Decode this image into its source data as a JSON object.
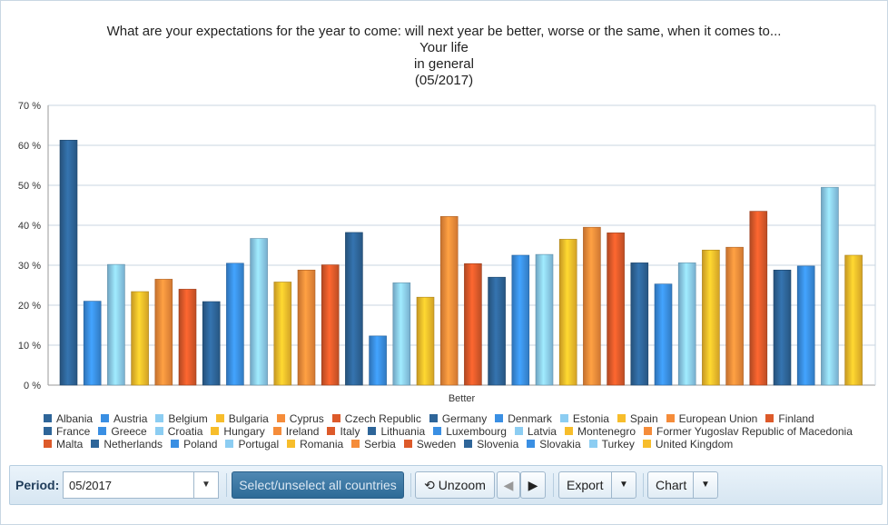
{
  "chart_data": {
    "type": "bar",
    "title": "What are your expectations for the year to come: will next year be better, worse or the same, when it comes to...",
    "subtitle": "Your life",
    "subtitle2": "in general",
    "period_label": "(05/2017)",
    "categories": [
      "Better"
    ],
    "ylim": [
      0,
      70
    ],
    "yticks": [
      "0 %",
      "10 %",
      "20 %",
      "30 %",
      "40 %",
      "50 %",
      "60 %",
      "70 %"
    ],
    "grid": true,
    "legend_position": "bottom",
    "series": [
      {
        "name": "Albania",
        "value": 61.3,
        "color": "#2e6599"
      },
      {
        "name": "Austria",
        "value": 21.0,
        "color": "#3a8fe3"
      },
      {
        "name": "Belgium",
        "value": 30.2,
        "color": "#8ccdf2"
      },
      {
        "name": "Bulgaria",
        "value": 23.4,
        "color": "#f7bd2b"
      },
      {
        "name": "Cyprus",
        "value": 26.5,
        "color": "#f58c3a"
      },
      {
        "name": "Czech Republic",
        "value": 24.0,
        "color": "#dd5a2a"
      },
      {
        "name": "Germany",
        "value": 20.9,
        "color": "#2e6599"
      },
      {
        "name": "Denmark",
        "value": 30.5,
        "color": "#3a8fe3"
      },
      {
        "name": "Estonia",
        "value": 36.7,
        "color": "#8ccdf2"
      },
      {
        "name": "Spain",
        "value": 25.8,
        "color": "#f7bd2b"
      },
      {
        "name": "European Union",
        "value": 28.8,
        "color": "#f58c3a"
      },
      {
        "name": "Finland",
        "value": 30.1,
        "color": "#dd5a2a"
      },
      {
        "name": "France",
        "value": 38.2,
        "color": "#2e6599"
      },
      {
        "name": "Greece",
        "value": 12.3,
        "color": "#3a8fe3"
      },
      {
        "name": "Croatia",
        "value": 25.6,
        "color": "#8ccdf2"
      },
      {
        "name": "Hungary",
        "value": 22.0,
        "color": "#f7bd2b"
      },
      {
        "name": "Ireland",
        "value": 42.2,
        "color": "#f58c3a"
      },
      {
        "name": "Italy",
        "value": 30.4,
        "color": "#dd5a2a"
      },
      {
        "name": "Lithuania",
        "value": 27.0,
        "color": "#2e6599"
      },
      {
        "name": "Luxembourg",
        "value": 32.5,
        "color": "#3a8fe3"
      },
      {
        "name": "Latvia",
        "value": 32.7,
        "color": "#8ccdf2"
      },
      {
        "name": "Montenegro",
        "value": 36.5,
        "color": "#f7bd2b"
      },
      {
        "name": "Former Yugoslav Republic of Macedonia",
        "value": 39.5,
        "color": "#f58c3a"
      },
      {
        "name": "Malta",
        "value": 38.1,
        "color": "#dd5a2a"
      },
      {
        "name": "Netherlands",
        "value": 30.6,
        "color": "#2e6599"
      },
      {
        "name": "Poland",
        "value": 25.3,
        "color": "#3a8fe3"
      },
      {
        "name": "Portugal",
        "value": 30.6,
        "color": "#8ccdf2"
      },
      {
        "name": "Romania",
        "value": 33.8,
        "color": "#f7bd2b"
      },
      {
        "name": "Serbia",
        "value": 34.5,
        "color": "#f58c3a"
      },
      {
        "name": "Sweden",
        "value": 43.5,
        "color": "#dd5a2a"
      },
      {
        "name": "Slovenia",
        "value": 28.8,
        "color": "#2e6599"
      },
      {
        "name": "Slovakia",
        "value": 29.8,
        "color": "#3a8fe3"
      },
      {
        "name": "Turkey",
        "value": 49.5,
        "color": "#8ccdf2"
      },
      {
        "name": "United Kingdom",
        "value": 32.5,
        "color": "#f7bd2b"
      }
    ]
  },
  "toolbar": {
    "period_label": "Period:",
    "period_value": "05/2017",
    "select_all_label": "Select/unselect all countries",
    "unzoom_label": "Unzoom",
    "export_label": "Export",
    "chart_label": "Chart",
    "dropdown_icon": "triangle-down-icon",
    "undo_icon": "undo-arrow-icon",
    "prev_icon": "triangle-left-icon",
    "next_icon": "triangle-right-icon"
  }
}
